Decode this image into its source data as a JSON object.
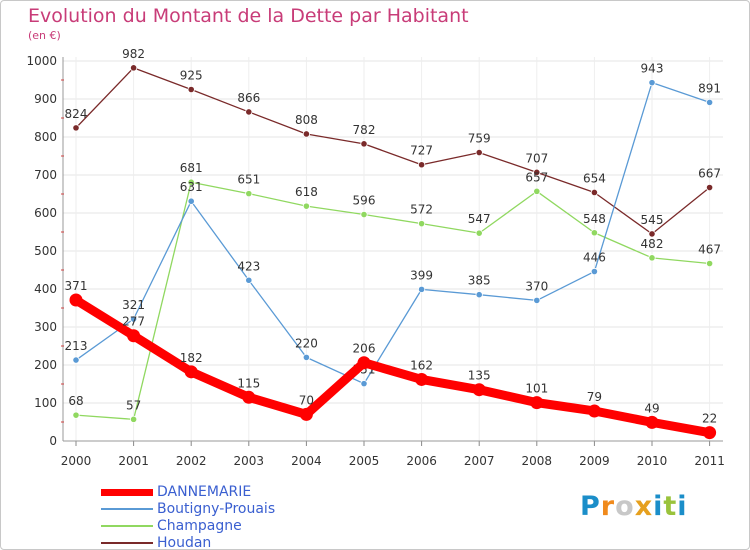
{
  "title": "Evolution du Montant de la Dette par Habitant",
  "subtitle": "(en €)",
  "brand": {
    "letters": [
      "P",
      "r",
      "o",
      "x",
      "i",
      "t",
      "i"
    ],
    "colors": [
      "#1b8ec9",
      "#f08a1c",
      "#c8c8c8",
      "#e6a01e",
      "#1b8ec9",
      "#9ac33c",
      "#1b8ec9"
    ]
  },
  "chart_data": {
    "type": "line",
    "x": [
      "2000",
      "2001",
      "2002",
      "2003",
      "2004",
      "2005",
      "2006",
      "2007",
      "2008",
      "2009",
      "2010",
      "2011"
    ],
    "ylim": [
      0,
      1000
    ],
    "yticks": [
      0,
      100,
      200,
      300,
      400,
      500,
      600,
      700,
      800,
      900,
      1000
    ],
    "grid": true,
    "legend_position": "bottom-left",
    "series": [
      {
        "name": "DANNEMARIE",
        "color": "#ff0000",
        "values": [
          371,
          277,
          182,
          115,
          70,
          206,
          162,
          135,
          101,
          79,
          49,
          22
        ]
      },
      {
        "name": "Boutigny-Prouais",
        "color": "#5a9ad5",
        "values": [
          213,
          321,
          631,
          423,
          220,
          151,
          399,
          385,
          370,
          446,
          943,
          891
        ]
      },
      {
        "name": "Champagne",
        "color": "#90d860",
        "values": [
          68,
          57,
          681,
          651,
          618,
          596,
          572,
          547,
          657,
          548,
          482,
          467
        ]
      },
      {
        "name": "Houdan",
        "color": "#7a2a2a",
        "values": [
          824,
          982,
          925,
          866,
          808,
          782,
          727,
          759,
          707,
          654,
          545,
          667
        ]
      }
    ]
  }
}
